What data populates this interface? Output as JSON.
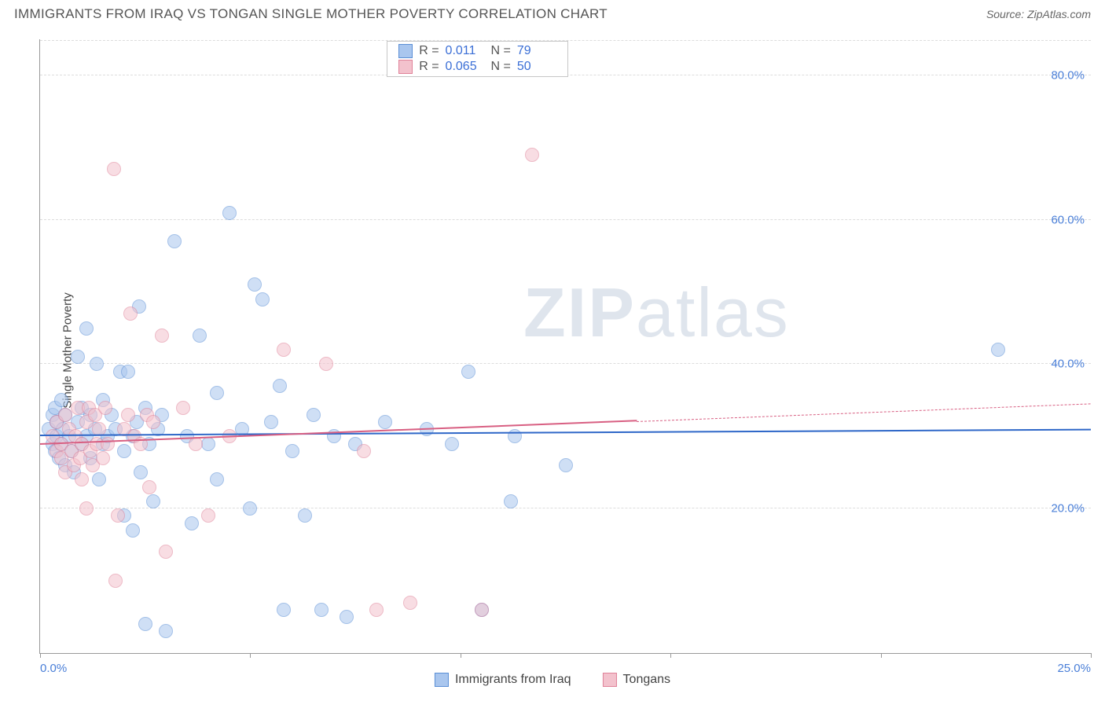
{
  "title": "IMMIGRANTS FROM IRAQ VS TONGAN SINGLE MOTHER POVERTY CORRELATION CHART",
  "source_label": "Source: ",
  "source_value": "ZipAtlas.com",
  "ylabel": "Single Mother Poverty",
  "watermark_bold": "ZIP",
  "watermark_rest": "atlas",
  "chart": {
    "type": "scatter",
    "xlim": [
      0,
      25
    ],
    "ylim": [
      0,
      85
    ],
    "xticks": [
      0,
      5,
      10,
      15,
      20,
      25
    ],
    "xtick_labels": [
      "0.0%",
      "",
      "",
      "",
      "",
      "25.0%"
    ],
    "yticks": [
      20,
      40,
      60,
      80
    ],
    "ytick_labels": [
      "20.0%",
      "40.0%",
      "60.0%",
      "80.0%"
    ],
    "background_color": "#ffffff",
    "grid_color": "#dddddd",
    "axis_color": "#999999",
    "marker_radius": 9,
    "marker_opacity": 0.55,
    "series": [
      {
        "name": "Immigrants from Iraq",
        "color_fill": "#a9c6ee",
        "color_stroke": "#5b8fd6",
        "trend_color": "#2e67c8",
        "R": "0.011",
        "N": "79",
        "trend": {
          "x1": 0,
          "y1": 30.0,
          "x2": 25,
          "y2": 30.8,
          "solid_to_x": 25
        },
        "points": [
          [
            0.2,
            31
          ],
          [
            0.3,
            33
          ],
          [
            0.3,
            29
          ],
          [
            0.35,
            34
          ],
          [
            0.35,
            28
          ],
          [
            0.4,
            30
          ],
          [
            0.4,
            32
          ],
          [
            0.45,
            27
          ],
          [
            0.5,
            35
          ],
          [
            0.5,
            29
          ],
          [
            0.55,
            31
          ],
          [
            0.6,
            33
          ],
          [
            0.6,
            26
          ],
          [
            0.7,
            30
          ],
          [
            0.75,
            28
          ],
          [
            0.8,
            25
          ],
          [
            0.9,
            32
          ],
          [
            0.9,
            41
          ],
          [
            1.0,
            29
          ],
          [
            1.0,
            34
          ],
          [
            1.1,
            30
          ],
          [
            1.1,
            45
          ],
          [
            1.2,
            27
          ],
          [
            1.2,
            33
          ],
          [
            1.3,
            31
          ],
          [
            1.35,
            40
          ],
          [
            1.4,
            24
          ],
          [
            1.5,
            29
          ],
          [
            1.5,
            35
          ],
          [
            1.6,
            30
          ],
          [
            1.7,
            33
          ],
          [
            1.8,
            31
          ],
          [
            1.9,
            39
          ],
          [
            2.0,
            28
          ],
          [
            2.0,
            19
          ],
          [
            2.1,
            39
          ],
          [
            2.2,
            30
          ],
          [
            2.2,
            17
          ],
          [
            2.3,
            32
          ],
          [
            2.35,
            48
          ],
          [
            2.4,
            25
          ],
          [
            2.5,
            34
          ],
          [
            2.5,
            4
          ],
          [
            2.6,
            29
          ],
          [
            2.7,
            21
          ],
          [
            2.8,
            31
          ],
          [
            2.9,
            33
          ],
          [
            3.0,
            3
          ],
          [
            3.2,
            57
          ],
          [
            3.5,
            30
          ],
          [
            3.6,
            18
          ],
          [
            3.8,
            44
          ],
          [
            4.0,
            29
          ],
          [
            4.2,
            24
          ],
          [
            4.2,
            36
          ],
          [
            4.5,
            61
          ],
          [
            4.8,
            31
          ],
          [
            5.0,
            20
          ],
          [
            5.1,
            51
          ],
          [
            5.3,
            49
          ],
          [
            5.5,
            32
          ],
          [
            5.7,
            37
          ],
          [
            5.8,
            6
          ],
          [
            6.0,
            28
          ],
          [
            6.3,
            19
          ],
          [
            6.5,
            33
          ],
          [
            6.7,
            6
          ],
          [
            7.0,
            30
          ],
          [
            7.3,
            5
          ],
          [
            7.5,
            29
          ],
          [
            8.2,
            32
          ],
          [
            9.2,
            31
          ],
          [
            9.8,
            29
          ],
          [
            10.2,
            39
          ],
          [
            10.5,
            6
          ],
          [
            11.2,
            21
          ],
          [
            11.3,
            30
          ],
          [
            12.5,
            26
          ],
          [
            22.8,
            42
          ]
        ]
      },
      {
        "name": "Tongans",
        "color_fill": "#f3c2cd",
        "color_stroke": "#e08299",
        "trend_color": "#d85f82",
        "R": "0.065",
        "N": "50",
        "trend": {
          "x1": 0,
          "y1": 28.8,
          "x2": 25,
          "y2": 34.5,
          "solid_to_x": 14.2
        },
        "points": [
          [
            0.3,
            30
          ],
          [
            0.4,
            28
          ],
          [
            0.4,
            32
          ],
          [
            0.5,
            27
          ],
          [
            0.5,
            29
          ],
          [
            0.6,
            33
          ],
          [
            0.6,
            25
          ],
          [
            0.7,
            31
          ],
          [
            0.75,
            28
          ],
          [
            0.8,
            26
          ],
          [
            0.85,
            30
          ],
          [
            0.9,
            34
          ],
          [
            0.95,
            27
          ],
          [
            1.0,
            29
          ],
          [
            1.0,
            24
          ],
          [
            1.1,
            32
          ],
          [
            1.1,
            20
          ],
          [
            1.15,
            34
          ],
          [
            1.2,
            28
          ],
          [
            1.25,
            26
          ],
          [
            1.3,
            33
          ],
          [
            1.35,
            29
          ],
          [
            1.4,
            31
          ],
          [
            1.5,
            27
          ],
          [
            1.55,
            34
          ],
          [
            1.6,
            29
          ],
          [
            1.75,
            67
          ],
          [
            1.8,
            10
          ],
          [
            1.85,
            19
          ],
          [
            2.0,
            31
          ],
          [
            2.1,
            33
          ],
          [
            2.15,
            47
          ],
          [
            2.25,
            30
          ],
          [
            2.4,
            29
          ],
          [
            2.55,
            33
          ],
          [
            2.6,
            23
          ],
          [
            2.7,
            32
          ],
          [
            2.9,
            44
          ],
          [
            3.0,
            14
          ],
          [
            3.4,
            34
          ],
          [
            3.7,
            29
          ],
          [
            4.0,
            19
          ],
          [
            4.5,
            30
          ],
          [
            5.8,
            42
          ],
          [
            6.8,
            40
          ],
          [
            7.7,
            28
          ],
          [
            8.0,
            6
          ],
          [
            8.8,
            7
          ],
          [
            10.5,
            6
          ],
          [
            11.7,
            69
          ]
        ]
      }
    ]
  },
  "legend_top": {
    "R_label": "R  = ",
    "N_label": "N  = "
  }
}
